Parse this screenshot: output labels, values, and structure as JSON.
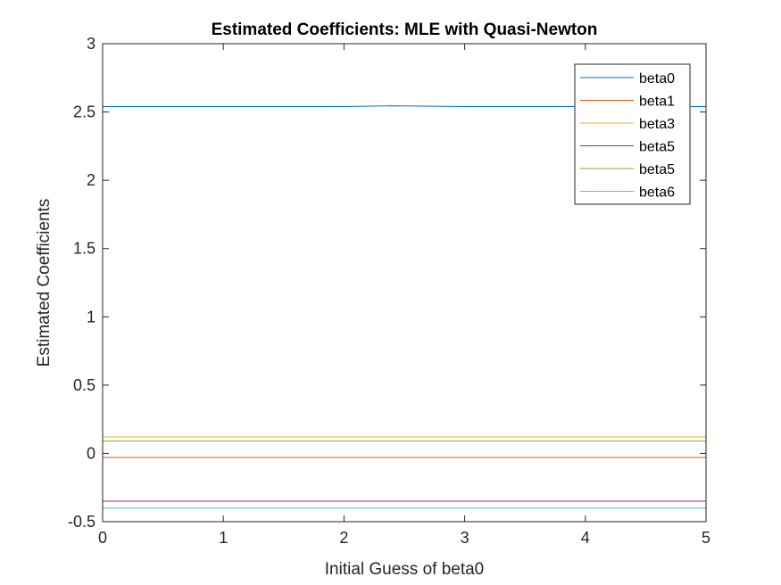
{
  "chart_data": {
    "type": "line",
    "title": "Estimated Coefficients: MLE with Quasi-Newton",
    "xlabel": "Initial Guess of beta0",
    "ylabel": "Estimated Coefficients",
    "xlim": [
      0,
      5
    ],
    "ylim": [
      -0.5,
      3
    ],
    "x_ticks": [
      0,
      1,
      2,
      3,
      4,
      5
    ],
    "x_tick_labels": [
      "0",
      "1",
      "2",
      "3",
      "4",
      "5"
    ],
    "y_ticks": [
      -0.5,
      0,
      0.5,
      1,
      1.5,
      2,
      2.5,
      3
    ],
    "y_tick_labels": [
      "-0.5",
      "0",
      "0.5",
      "1",
      "1.5",
      "2",
      "2.5",
      "3"
    ],
    "grid": false,
    "legend_position": "top-right",
    "x": [
      0,
      0.5,
      1,
      1.5,
      2,
      2.4,
      3,
      3.5,
      4,
      4.5,
      5
    ],
    "series": [
      {
        "name": "beta0",
        "color": "#0072BD",
        "values": [
          2.54,
          2.54,
          2.54,
          2.54,
          2.54,
          2.545,
          2.54,
          2.54,
          2.54,
          2.54,
          2.54
        ]
      },
      {
        "name": "beta1",
        "color": "#D95319",
        "values": [
          -0.03,
          -0.03,
          -0.03,
          -0.03,
          -0.03,
          -0.03,
          -0.03,
          -0.03,
          -0.03,
          -0.03,
          -0.03
        ]
      },
      {
        "name": "beta3",
        "color": "#EDB120",
        "values": [
          0.12,
          0.12,
          0.12,
          0.12,
          0.12,
          0.12,
          0.12,
          0.12,
          0.12,
          0.12,
          0.12
        ]
      },
      {
        "name": "beta5",
        "color": "#7E2F8E",
        "values": [
          -0.35,
          -0.35,
          -0.35,
          -0.35,
          -0.35,
          -0.35,
          -0.35,
          -0.35,
          -0.35,
          -0.35,
          -0.35
        ]
      },
      {
        "name": "beta5",
        "color": "#77AC30",
        "values": [
          0.09,
          0.09,
          0.09,
          0.09,
          0.09,
          0.09,
          0.09,
          0.09,
          0.09,
          0.09,
          0.09
        ]
      },
      {
        "name": "beta6",
        "color": "#4DBEEE",
        "values": [
          -0.4,
          -0.4,
          -0.4,
          -0.4,
          -0.4,
          -0.4,
          -0.4,
          -0.4,
          -0.4,
          -0.4,
          -0.4
        ]
      }
    ]
  }
}
